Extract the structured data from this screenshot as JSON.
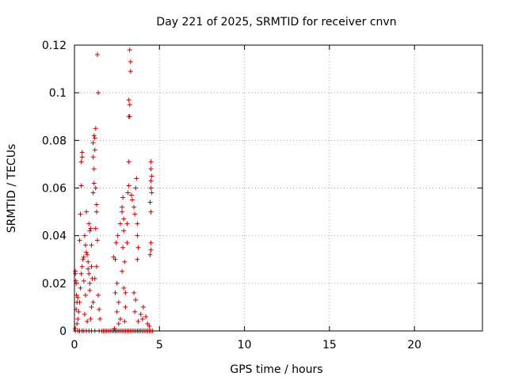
{
  "chart_data": {
    "type": "scatter",
    "title": "Day 221 of 2025, SRMTID for receiver cnvn",
    "xlabel": "GPS time / hours",
    "ylabel": "SRMTID / TECUs",
    "xlim": [
      0,
      24
    ],
    "ylim": [
      0,
      0.12
    ],
    "xticks": [
      0,
      5,
      10,
      15,
      20
    ],
    "yticks": [
      0,
      0.02,
      0.04,
      0.06,
      0.08,
      0.1,
      0.12
    ],
    "xtick_labels": [
      "0",
      "5",
      "10",
      "15",
      "20"
    ],
    "ytick_labels": [
      "0",
      "0.02",
      "0.04",
      "0.06",
      "0.08",
      "0.1",
      "0.12"
    ],
    "grid": true,
    "marker": "+",
    "color": "#cc0000",
    "series": [
      {
        "name": "SRMTID",
        "points": [
          [
            0.05,
            0.025
          ],
          [
            0.05,
            0.024
          ],
          [
            0.08,
            0.021
          ],
          [
            0.1,
            0.02
          ],
          [
            0.12,
            0.015
          ],
          [
            0.15,
            0.012
          ],
          [
            0.1,
            0.009
          ],
          [
            0.2,
            0.005
          ],
          [
            0.15,
            0.003
          ],
          [
            0.05,
            0.001
          ],
          [
            0.25,
            0.008
          ],
          [
            0.3,
            0.012
          ],
          [
            0.35,
            0.018
          ],
          [
            0.4,
            0.024
          ],
          [
            0.45,
            0.027
          ],
          [
            0.5,
            0.03
          ],
          [
            0.55,
            0.031
          ],
          [
            0.35,
            0.049
          ],
          [
            0.4,
            0.061
          ],
          [
            0.4,
            0.071
          ],
          [
            0.45,
            0.075
          ],
          [
            0.45,
            0.073
          ],
          [
            0.6,
            0.04
          ],
          [
            0.65,
            0.036
          ],
          [
            0.7,
            0.033
          ],
          [
            0.75,
            0.032
          ],
          [
            0.8,
            0.029
          ],
          [
            0.8,
            0.026
          ],
          [
            0.85,
            0.024
          ],
          [
            0.9,
            0.02
          ],
          [
            0.9,
            0.017
          ],
          [
            0.7,
            0.05
          ],
          [
            0.85,
            0.045
          ],
          [
            0.9,
            0.042
          ],
          [
            0.95,
            0.043
          ],
          [
            1.0,
            0.036
          ],
          [
            1.0,
            0.027
          ],
          [
            1.05,
            0.022
          ],
          [
            1.0,
            0.01
          ],
          [
            0.95,
            0.005
          ],
          [
            1.1,
            0.058
          ],
          [
            1.15,
            0.062
          ],
          [
            1.15,
            0.068
          ],
          [
            1.1,
            0.073
          ],
          [
            1.1,
            0.079
          ],
          [
            1.15,
            0.082
          ],
          [
            1.2,
            0.081
          ],
          [
            1.25,
            0.085
          ],
          [
            1.2,
            0.076
          ],
          [
            1.25,
            0.06
          ],
          [
            1.3,
            0.053
          ],
          [
            1.3,
            0.05
          ],
          [
            1.25,
            0.043
          ],
          [
            1.35,
            0.038
          ],
          [
            1.35,
            0.116
          ],
          [
            1.4,
            0.1
          ],
          [
            1.3,
            0.027
          ],
          [
            1.2,
            0.022
          ],
          [
            1.4,
            0.015
          ],
          [
            1.45,
            0.009
          ],
          [
            1.5,
            0.005
          ],
          [
            1.1,
            0.012
          ],
          [
            0.3,
            0.038
          ],
          [
            0.55,
            0.021
          ],
          [
            0.65,
            0.015
          ],
          [
            0.2,
            0.014
          ],
          [
            0.6,
            0.007
          ],
          [
            0.75,
            0.004
          ],
          [
            2.3,
            0.031
          ],
          [
            2.4,
            0.03
          ],
          [
            2.5,
            0.02
          ],
          [
            2.4,
            0.016
          ],
          [
            2.6,
            0.012
          ],
          [
            2.5,
            0.008
          ],
          [
            2.7,
            0.005
          ],
          [
            2.6,
            0.003
          ],
          [
            2.35,
            0.001
          ],
          [
            2.45,
            0.037
          ],
          [
            2.55,
            0.04
          ],
          [
            2.7,
            0.045
          ],
          [
            2.8,
            0.05
          ],
          [
            2.8,
            0.052
          ],
          [
            2.85,
            0.056
          ],
          [
            2.9,
            0.047
          ],
          [
            2.9,
            0.042
          ],
          [
            2.85,
            0.035
          ],
          [
            2.95,
            0.029
          ],
          [
            2.8,
            0.025
          ],
          [
            2.9,
            0.018
          ],
          [
            3.0,
            0.016
          ],
          [
            3.0,
            0.01
          ],
          [
            2.95,
            0.004
          ],
          [
            3.1,
            0.037
          ],
          [
            3.1,
            0.045
          ],
          [
            3.15,
            0.058
          ],
          [
            3.2,
            0.061
          ],
          [
            3.2,
            0.071
          ],
          [
            3.25,
            0.09
          ],
          [
            3.25,
            0.095
          ],
          [
            3.2,
            0.097
          ],
          [
            3.3,
            0.109
          ],
          [
            3.3,
            0.113
          ],
          [
            3.25,
            0.118
          ],
          [
            3.2,
            0.09
          ],
          [
            3.35,
            0.057
          ],
          [
            3.4,
            0.055
          ],
          [
            3.5,
            0.052
          ],
          [
            3.55,
            0.049
          ],
          [
            3.6,
            0.06
          ],
          [
            3.65,
            0.064
          ],
          [
            3.7,
            0.045
          ],
          [
            3.7,
            0.04
          ],
          [
            3.75,
            0.035
          ],
          [
            3.7,
            0.03
          ],
          [
            3.5,
            0.016
          ],
          [
            3.6,
            0.013
          ],
          [
            3.55,
            0.008
          ],
          [
            3.75,
            0.004
          ],
          [
            3.9,
            0.007
          ],
          [
            4.0,
            0.005
          ],
          [
            4.05,
            0.01
          ],
          [
            4.2,
            0.006
          ],
          [
            4.3,
            0.003
          ],
          [
            4.4,
            0.002
          ],
          [
            4.5,
            0.037
          ],
          [
            4.5,
            0.034
          ],
          [
            4.45,
            0.032
          ],
          [
            4.5,
            0.063
          ],
          [
            4.55,
            0.065
          ],
          [
            4.5,
            0.068
          ],
          [
            4.5,
            0.071
          ],
          [
            4.5,
            0.06
          ],
          [
            4.55,
            0.058
          ],
          [
            4.5,
            0.05
          ],
          [
            4.45,
            0.054
          ]
        ],
        "zeros": [
          0.05,
          0.2,
          0.3,
          0.45,
          0.55,
          0.7,
          0.85,
          1.0,
          1.2,
          1.45,
          1.6,
          1.7,
          1.8,
          1.9,
          2.0,
          2.1,
          2.2,
          2.3,
          2.4,
          2.5,
          2.6,
          2.7,
          2.8,
          2.9,
          3.0,
          3.1,
          3.2,
          3.3,
          3.4,
          3.5,
          3.6,
          3.7,
          3.8,
          3.9,
          4.0,
          4.1,
          4.2,
          4.3,
          4.4,
          4.5,
          4.6
        ]
      }
    ]
  }
}
